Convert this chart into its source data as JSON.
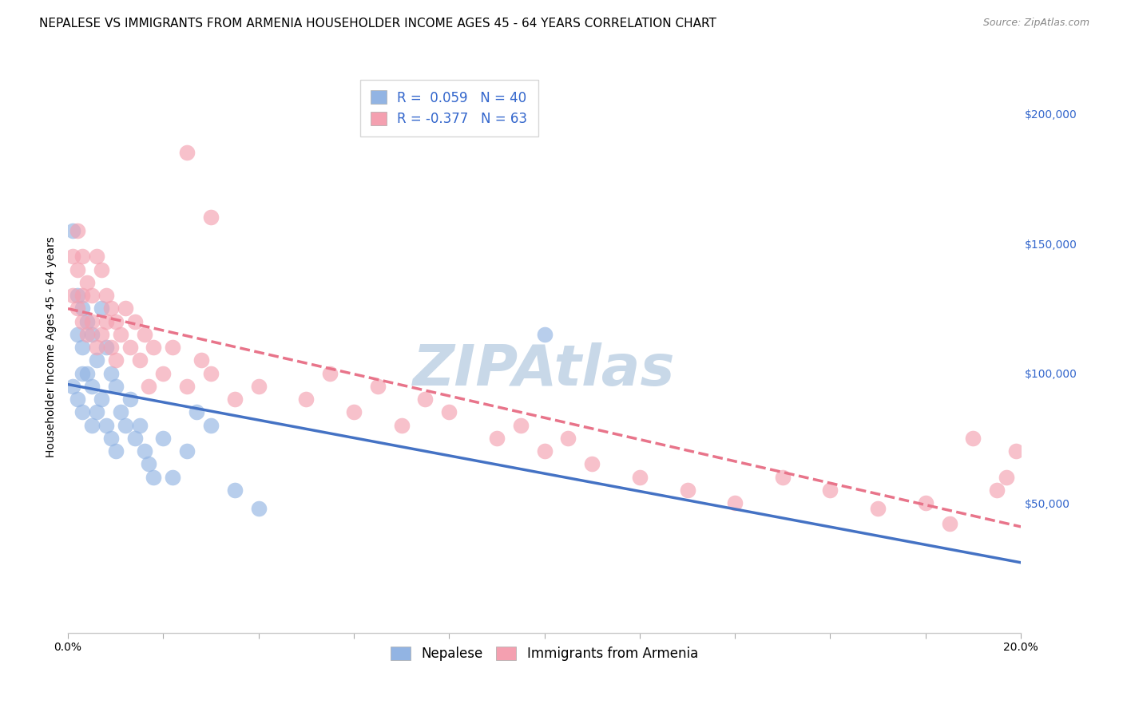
{
  "title": "NEPALESE VS IMMIGRANTS FROM ARMENIA HOUSEHOLDER INCOME AGES 45 - 64 YEARS CORRELATION CHART",
  "source": "Source: ZipAtlas.com",
  "ylabel": "Householder Income Ages 45 - 64 years",
  "legend_label_1": "Nepalese",
  "legend_label_2": "Immigrants from Armenia",
  "r1": 0.059,
  "n1": 40,
  "r2": -0.377,
  "n2": 63,
  "color1": "#92b4e3",
  "color2": "#f4a0b0",
  "line_color1": "#4472c4",
  "line_color2": "#e8748a",
  "x_min": 0.0,
  "x_max": 0.2,
  "y_min": 0,
  "y_max": 220000,
  "background_color": "#ffffff",
  "grid_color": "#cccccc",
  "title_fontsize": 11,
  "axis_label_fontsize": 10,
  "tick_fontsize": 10,
  "legend_fontsize": 12,
  "watermark_text": "ZIPAtlas",
  "watermark_color": "#c8d8e8",
  "watermark_fontsize": 52,
  "nepalese_x": [
    0.001,
    0.001,
    0.002,
    0.002,
    0.002,
    0.003,
    0.003,
    0.003,
    0.004,
    0.004,
    0.005,
    0.005,
    0.005,
    0.006,
    0.006,
    0.007,
    0.007,
    0.008,
    0.008,
    0.009,
    0.009,
    0.01,
    0.01,
    0.011,
    0.012,
    0.013,
    0.014,
    0.015,
    0.016,
    0.017,
    0.018,
    0.02,
    0.022,
    0.025,
    0.027,
    0.03,
    0.035,
    0.04,
    0.1,
    0.003
  ],
  "nepalese_y": [
    155000,
    95000,
    130000,
    115000,
    90000,
    125000,
    110000,
    85000,
    120000,
    100000,
    115000,
    95000,
    80000,
    105000,
    85000,
    125000,
    90000,
    110000,
    80000,
    100000,
    75000,
    95000,
    70000,
    85000,
    80000,
    90000,
    75000,
    80000,
    70000,
    65000,
    60000,
    75000,
    60000,
    70000,
    85000,
    80000,
    55000,
    48000,
    115000,
    100000
  ],
  "armenia_x": [
    0.001,
    0.001,
    0.002,
    0.002,
    0.002,
    0.003,
    0.003,
    0.003,
    0.004,
    0.004,
    0.005,
    0.005,
    0.006,
    0.006,
    0.007,
    0.007,
    0.008,
    0.008,
    0.009,
    0.009,
    0.01,
    0.01,
    0.011,
    0.012,
    0.013,
    0.014,
    0.015,
    0.016,
    0.017,
    0.018,
    0.02,
    0.022,
    0.025,
    0.028,
    0.03,
    0.035,
    0.04,
    0.05,
    0.055,
    0.06,
    0.065,
    0.07,
    0.075,
    0.08,
    0.09,
    0.095,
    0.1,
    0.105,
    0.11,
    0.12,
    0.13,
    0.14,
    0.15,
    0.16,
    0.17,
    0.18,
    0.185,
    0.19,
    0.195,
    0.197,
    0.199,
    0.025,
    0.03
  ],
  "armenia_y": [
    130000,
    145000,
    140000,
    125000,
    155000,
    145000,
    130000,
    120000,
    135000,
    115000,
    130000,
    120000,
    145000,
    110000,
    140000,
    115000,
    130000,
    120000,
    125000,
    110000,
    120000,
    105000,
    115000,
    125000,
    110000,
    120000,
    105000,
    115000,
    95000,
    110000,
    100000,
    110000,
    95000,
    105000,
    100000,
    90000,
    95000,
    90000,
    100000,
    85000,
    95000,
    80000,
    90000,
    85000,
    75000,
    80000,
    70000,
    75000,
    65000,
    60000,
    55000,
    50000,
    60000,
    55000,
    48000,
    50000,
    42000,
    75000,
    55000,
    60000,
    70000,
    185000,
    160000
  ]
}
